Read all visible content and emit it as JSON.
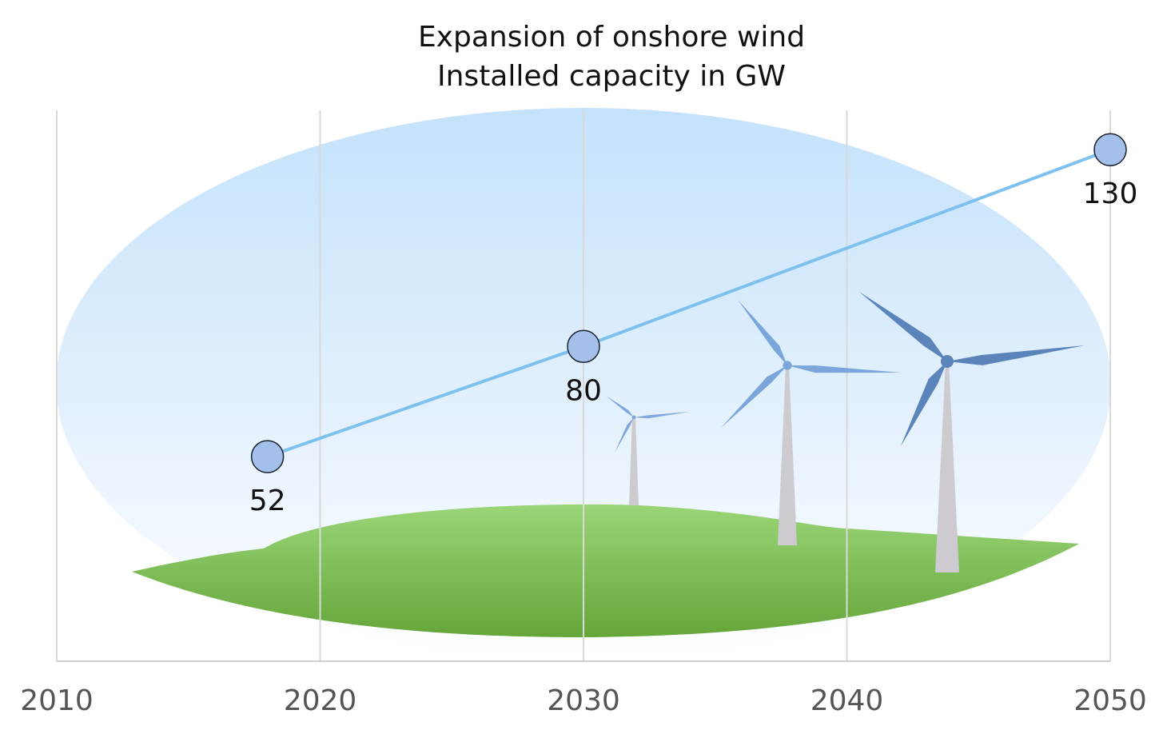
{
  "chart_data": {
    "type": "line",
    "title": "Expansion of onshore wind",
    "subtitle": "Installed capacity in GW",
    "x": [
      2018,
      2030,
      2050
    ],
    "series": [
      {
        "name": "Installed capacity",
        "color": "#7fc1ee",
        "values": [
          52,
          80,
          130
        ]
      }
    ],
    "xlim": [
      2010,
      2050
    ],
    "xticks": [
      2010,
      2020,
      2030,
      2040,
      2050
    ],
    "ylim": [
      0,
      140
    ],
    "grid": true
  }
}
